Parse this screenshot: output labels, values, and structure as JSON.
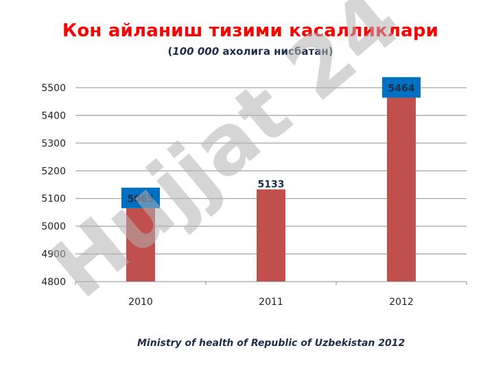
{
  "title_text": "Кон айланиш тизими касалликлари",
  "subtitle": {
    "open": "(",
    "number": "100 000",
    "rest": " ахолига нисбатан)"
  },
  "source": "Ministry of health of Republic of Uzbekistan 2012",
  "watermark": "Hujjat 24",
  "colors": {
    "bar": "#c0504d",
    "highlight_label_bg": "#0070c0",
    "title": "#ff0000",
    "watermark": "#b3b3b3"
  },
  "chart_data": {
    "type": "bar",
    "categories": [
      "2010",
      "2011",
      "2012"
    ],
    "values": [
      5065,
      5133,
      5464
    ],
    "value_labels": [
      "5065",
      "5133",
      "5464"
    ],
    "label_highlight": [
      true,
      false,
      true
    ],
    "yticks": [
      "4800",
      "4900",
      "5000",
      "5100",
      "5200",
      "5300",
      "5400",
      "5500"
    ],
    "ylim": [
      4800,
      5500
    ],
    "grid": true,
    "legend": "none"
  }
}
